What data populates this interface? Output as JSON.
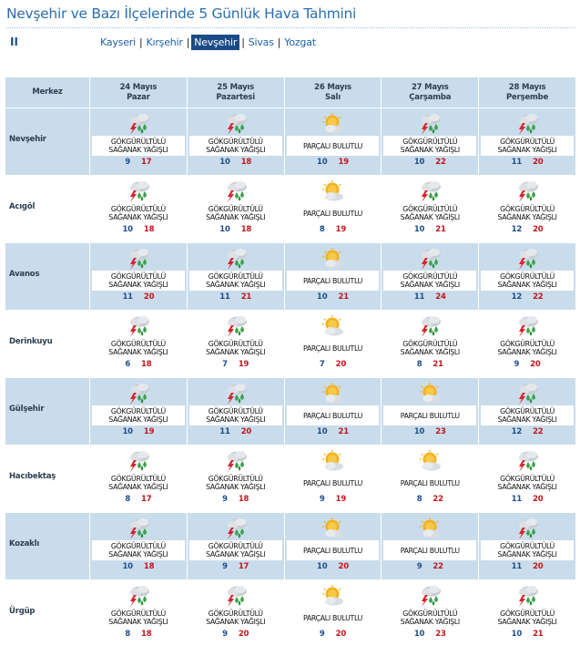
{
  "page": {
    "title": "Nevşehir ve Bazı İlçelerinde 5 Günlük Hava Tahmini",
    "marker": "II"
  },
  "nav": {
    "cities": [
      {
        "label": "Kayseri",
        "active": false
      },
      {
        "label": "Kırşehir",
        "active": false
      },
      {
        "label": "Nevşehir",
        "active": true
      },
      {
        "label": "Sivas",
        "active": false
      },
      {
        "label": "Yozgat",
        "active": false
      }
    ],
    "separator": "|"
  },
  "table": {
    "corner_label": "Merkez",
    "days": [
      {
        "date": "24 Mayıs",
        "weekday": "Pazar"
      },
      {
        "date": "25 Mayıs",
        "weekday": "Pazartesi"
      },
      {
        "date": "26 Mayıs",
        "weekday": "Salı"
      },
      {
        "date": "27 Mayıs",
        "weekday": "Çarşamba"
      },
      {
        "date": "28 Mayıs",
        "weekday": "Perşembe"
      }
    ],
    "rows": [
      {
        "district": "Nevşehir",
        "shaded": true,
        "cells": [
          {
            "icon": "thunderstorm-icon",
            "line1": "GÖKGÜRÜLTÜLÜ",
            "line2": "SAĞANAK YAĞIŞLI",
            "min": "9",
            "max": "17"
          },
          {
            "icon": "thunderstorm-icon",
            "line1": "GÖKGÜRÜLTÜLÜ",
            "line2": "SAĞANAK YAĞIŞLI",
            "min": "10",
            "max": "18"
          },
          {
            "icon": "partly-cloudy-icon",
            "line1": "PARÇALI BULUTLU",
            "line2": "",
            "min": "10",
            "max": "19"
          },
          {
            "icon": "thunderstorm-icon",
            "line1": "GÖKGÜRÜLTÜLÜ",
            "line2": "SAĞANAK YAĞIŞLI",
            "min": "10",
            "max": "22"
          },
          {
            "icon": "thunderstorm-icon",
            "line1": "GÖKGÜRÜLTÜLÜ",
            "line2": "SAĞANAK YAĞIŞLI",
            "min": "11",
            "max": "20"
          }
        ]
      },
      {
        "district": "Acıgöl",
        "shaded": false,
        "cells": [
          {
            "icon": "thunderstorm-icon",
            "line1": "GÖKGÜRÜLTÜLÜ",
            "line2": "SAĞANAK YAĞIŞLI",
            "min": "10",
            "max": "18"
          },
          {
            "icon": "thunderstorm-icon",
            "line1": "GÖKGÜRÜLTÜLÜ",
            "line2": "SAĞANAK YAĞIŞLI",
            "min": "10",
            "max": "18"
          },
          {
            "icon": "partly-cloudy-icon",
            "line1": "PARÇALI BULUTLU",
            "line2": "",
            "min": "8",
            "max": "19"
          },
          {
            "icon": "thunderstorm-icon",
            "line1": "GÖKGÜRÜLTÜLÜ",
            "line2": "SAĞANAK YAĞIŞLI",
            "min": "10",
            "max": "21"
          },
          {
            "icon": "thunderstorm-icon",
            "line1": "GÖKGÜRÜLTÜLÜ",
            "line2": "SAĞANAK YAĞIŞLI",
            "min": "12",
            "max": "20"
          }
        ]
      },
      {
        "district": "Avanos",
        "shaded": true,
        "cells": [
          {
            "icon": "thunderstorm-icon",
            "line1": "GÖKGÜRÜLTÜLÜ",
            "line2": "SAĞANAK YAĞIŞLI",
            "min": "11",
            "max": "20"
          },
          {
            "icon": "thunderstorm-icon",
            "line1": "GÖKGÜRÜLTÜLÜ",
            "line2": "SAĞANAK YAĞIŞLI",
            "min": "11",
            "max": "21"
          },
          {
            "icon": "partly-cloudy-icon",
            "line1": "PARÇALI BULUTLU",
            "line2": "",
            "min": "10",
            "max": "21"
          },
          {
            "icon": "thunderstorm-icon",
            "line1": "GÖKGÜRÜLTÜLÜ",
            "line2": "SAĞANAK YAĞIŞLI",
            "min": "11",
            "max": "24"
          },
          {
            "icon": "thunderstorm-icon",
            "line1": "GÖKGÜRÜLTÜLÜ",
            "line2": "SAĞANAK YAĞIŞLI",
            "min": "12",
            "max": "22"
          }
        ]
      },
      {
        "district": "Derinkuyu",
        "shaded": false,
        "cells": [
          {
            "icon": "thunderstorm-icon",
            "line1": "GÖKGÜRÜLTÜLÜ",
            "line2": "SAĞANAK YAĞIŞLI",
            "min": "6",
            "max": "18"
          },
          {
            "icon": "thunderstorm-icon",
            "line1": "GÖKGÜRÜLTÜLÜ",
            "line2": "SAĞANAK YAĞIŞLI",
            "min": "7",
            "max": "19"
          },
          {
            "icon": "partly-cloudy-icon",
            "line1": "PARÇALI BULUTLU",
            "line2": "",
            "min": "7",
            "max": "20"
          },
          {
            "icon": "thunderstorm-icon",
            "line1": "GÖKGÜRÜLTÜLÜ",
            "line2": "SAĞANAK YAĞIŞLI",
            "min": "8",
            "max": "21"
          },
          {
            "icon": "thunderstorm-icon",
            "line1": "GÖKGÜRÜLTÜLÜ",
            "line2": "SAĞANAK YAĞIŞLI",
            "min": "9",
            "max": "20"
          }
        ]
      },
      {
        "district": "Gülşehir",
        "shaded": true,
        "cells": [
          {
            "icon": "thunderstorm-icon",
            "line1": "GÖKGÜRÜLTÜLÜ",
            "line2": "SAĞANAK YAĞIŞLI",
            "min": "10",
            "max": "19"
          },
          {
            "icon": "thunderstorm-icon",
            "line1": "GÖKGÜRÜLTÜLÜ",
            "line2": "SAĞANAK YAĞIŞLI",
            "min": "11",
            "max": "20"
          },
          {
            "icon": "partly-cloudy-icon",
            "line1": "PARÇALI BULUTLU",
            "line2": "",
            "min": "10",
            "max": "21"
          },
          {
            "icon": "partly-cloudy-icon",
            "line1": "PARÇALI BULUTLU",
            "line2": "",
            "min": "10",
            "max": "23"
          },
          {
            "icon": "thunderstorm-icon",
            "line1": "GÖKGÜRÜLTÜLÜ",
            "line2": "SAĞANAK YAĞIŞLI",
            "min": "12",
            "max": "22"
          }
        ]
      },
      {
        "district": "Hacıbektaş",
        "shaded": false,
        "cells": [
          {
            "icon": "thunderstorm-icon",
            "line1": "GÖKGÜRÜLTÜLÜ",
            "line2": "SAĞANAK YAĞIŞLI",
            "min": "8",
            "max": "17"
          },
          {
            "icon": "thunderstorm-icon",
            "line1": "GÖKGÜRÜLTÜLÜ",
            "line2": "SAĞANAK YAĞIŞLI",
            "min": "9",
            "max": "18"
          },
          {
            "icon": "partly-cloudy-icon",
            "line1": "PARÇALI BULUTLU",
            "line2": "",
            "min": "9",
            "max": "19"
          },
          {
            "icon": "partly-cloudy-icon",
            "line1": "PARÇALI BULUTLU",
            "line2": "",
            "min": "8",
            "max": "22"
          },
          {
            "icon": "thunderstorm-icon",
            "line1": "GÖKGÜRÜLTÜLÜ",
            "line2": "SAĞANAK YAĞIŞLI",
            "min": "11",
            "max": "20"
          }
        ]
      },
      {
        "district": "Kozaklı",
        "shaded": true,
        "cells": [
          {
            "icon": "thunderstorm-icon",
            "line1": "GÖKGÜRÜLTÜLÜ",
            "line2": "SAĞANAK YAĞIŞLI",
            "min": "10",
            "max": "18"
          },
          {
            "icon": "thunderstorm-icon",
            "line1": "GÖKGÜRÜLTÜLÜ",
            "line2": "SAĞANAK YAĞIŞLI",
            "min": "9",
            "max": "17"
          },
          {
            "icon": "partly-cloudy-icon",
            "line1": "PARÇALI BULUTLU",
            "line2": "",
            "min": "10",
            "max": "20"
          },
          {
            "icon": "partly-cloudy-icon",
            "line1": "PARÇALI BULUTLU",
            "line2": "",
            "min": "9",
            "max": "22"
          },
          {
            "icon": "thunderstorm-icon",
            "line1": "GÖKGÜRÜLTÜLÜ",
            "line2": "SAĞANAK YAĞIŞLI",
            "min": "11",
            "max": "20"
          }
        ]
      },
      {
        "district": "Ürgüp",
        "shaded": false,
        "cells": [
          {
            "icon": "thunderstorm-icon",
            "line1": "GÖKGÜRÜLTÜLÜ",
            "line2": "SAĞANAK YAĞIŞLI",
            "min": "8",
            "max": "18"
          },
          {
            "icon": "thunderstorm-icon",
            "line1": "GÖKGÜRÜLTÜLÜ",
            "line2": "SAĞANAK YAĞIŞLI",
            "min": "9",
            "max": "20"
          },
          {
            "icon": "partly-cloudy-icon",
            "line1": "PARÇALI BULUTLU",
            "line2": "",
            "min": "9",
            "max": "20"
          },
          {
            "icon": "thunderstorm-icon",
            "line1": "GÖKGÜRÜLTÜLÜ",
            "line2": "SAĞANAK YAĞIŞLI",
            "min": "10",
            "max": "23"
          },
          {
            "icon": "thunderstorm-icon",
            "line1": "GÖKGÜRÜLTÜLÜ",
            "line2": "SAĞANAK YAĞIŞLI",
            "min": "10",
            "max": "21"
          }
        ]
      }
    ]
  },
  "colors": {
    "title": "#2a6fb0",
    "header_bg": "#c9dceb",
    "active_tab": "#1b4b86",
    "min_temp": "#1f4d8c",
    "max_temp": "#c4161c"
  }
}
